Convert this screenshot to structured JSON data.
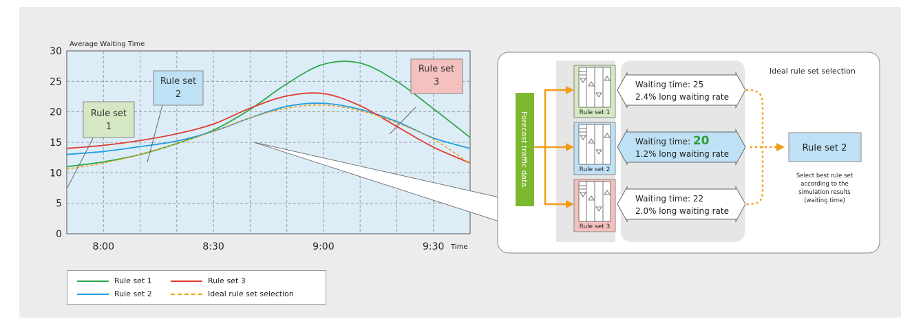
{
  "chart_data": {
    "type": "line",
    "ylabel": "Average Waiting Time",
    "xlabel": "Time",
    "x": [
      "7:50",
      "8:00",
      "8:10",
      "8:20",
      "8:30",
      "8:40",
      "8:50",
      "9:00",
      "9:10",
      "9:20",
      "9:30",
      "9:40"
    ],
    "x_ticks": [
      "8:00",
      "8:30",
      "9:00",
      "9:30"
    ],
    "y_ticks": [
      0,
      5,
      10,
      15,
      20,
      25,
      30
    ],
    "ylim": [
      0,
      30
    ],
    "grid": true,
    "series": [
      {
        "name": "Rule set 1",
        "color": "#2ba84a",
        "dash": "",
        "values": [
          11.0,
          11.8,
          13.0,
          14.8,
          17.0,
          20.4,
          24.6,
          27.8,
          28.0,
          25.0,
          20.5,
          15.8
        ]
      },
      {
        "name": "Rule set 2",
        "color": "#1f9fdf",
        "dash": "",
        "values": [
          13.0,
          13.5,
          14.3,
          15.2,
          16.8,
          19.0,
          20.9,
          21.4,
          20.4,
          18.4,
          15.7,
          14.0
        ]
      },
      {
        "name": "Rule set 3",
        "color": "#e23b2e",
        "dash": "",
        "values": [
          14.0,
          14.5,
          15.3,
          16.4,
          18.0,
          20.6,
          22.6,
          23.0,
          21.0,
          17.6,
          14.2,
          11.6
        ]
      },
      {
        "name": "Ideal rule set selection",
        "color": "#f39c12",
        "dash": "4,3",
        "values": [
          10.6,
          11.6,
          13.0,
          14.8,
          16.8,
          19.0,
          20.6,
          21.1,
          20.2,
          18.2,
          15.5,
          11.5
        ]
      }
    ],
    "annotations": [
      {
        "label": "Rule set\n1",
        "fill": "#d5e8c3"
      },
      {
        "label": "Rule set\n2",
        "fill": "#bfe1f5"
      },
      {
        "label": "Rule set\n3",
        "fill": "#f5c1be"
      }
    ],
    "legend": "bottom"
  },
  "diagram": {
    "forecast_label": "Forecast traffic data",
    "ideal_title": "Ideal rule set selection",
    "rules": [
      {
        "name": "Rule set 1",
        "wait_prefix": "Waiting time: ",
        "wait_value": "25",
        "rate": "2.4% long waiting rate",
        "fill": "#d5e8c3",
        "box_fill": "#ffffff",
        "highlight": false
      },
      {
        "name": "Rule set 2",
        "wait_prefix": "Waiting time: ",
        "wait_value": "20",
        "rate": "1.2% long waiting rate",
        "fill": "#bfe1f5",
        "box_fill": "#bfe1f5",
        "highlight": true
      },
      {
        "name": "Rule set 3",
        "wait_prefix": "Waiting time: ",
        "wait_value": "22",
        "rate": "2.0% long waiting rate",
        "fill": "#f5c1be",
        "box_fill": "#ffffff",
        "highlight": false
      }
    ],
    "result_label": "Rule set 2",
    "result_note": [
      "Select best rule set",
      "according to the",
      "simulation results",
      "(waiting time)"
    ],
    "accent_green": "#2e9e3c",
    "arrow_orange": "#f39c12",
    "forecast_fill": "#7cb82f"
  }
}
